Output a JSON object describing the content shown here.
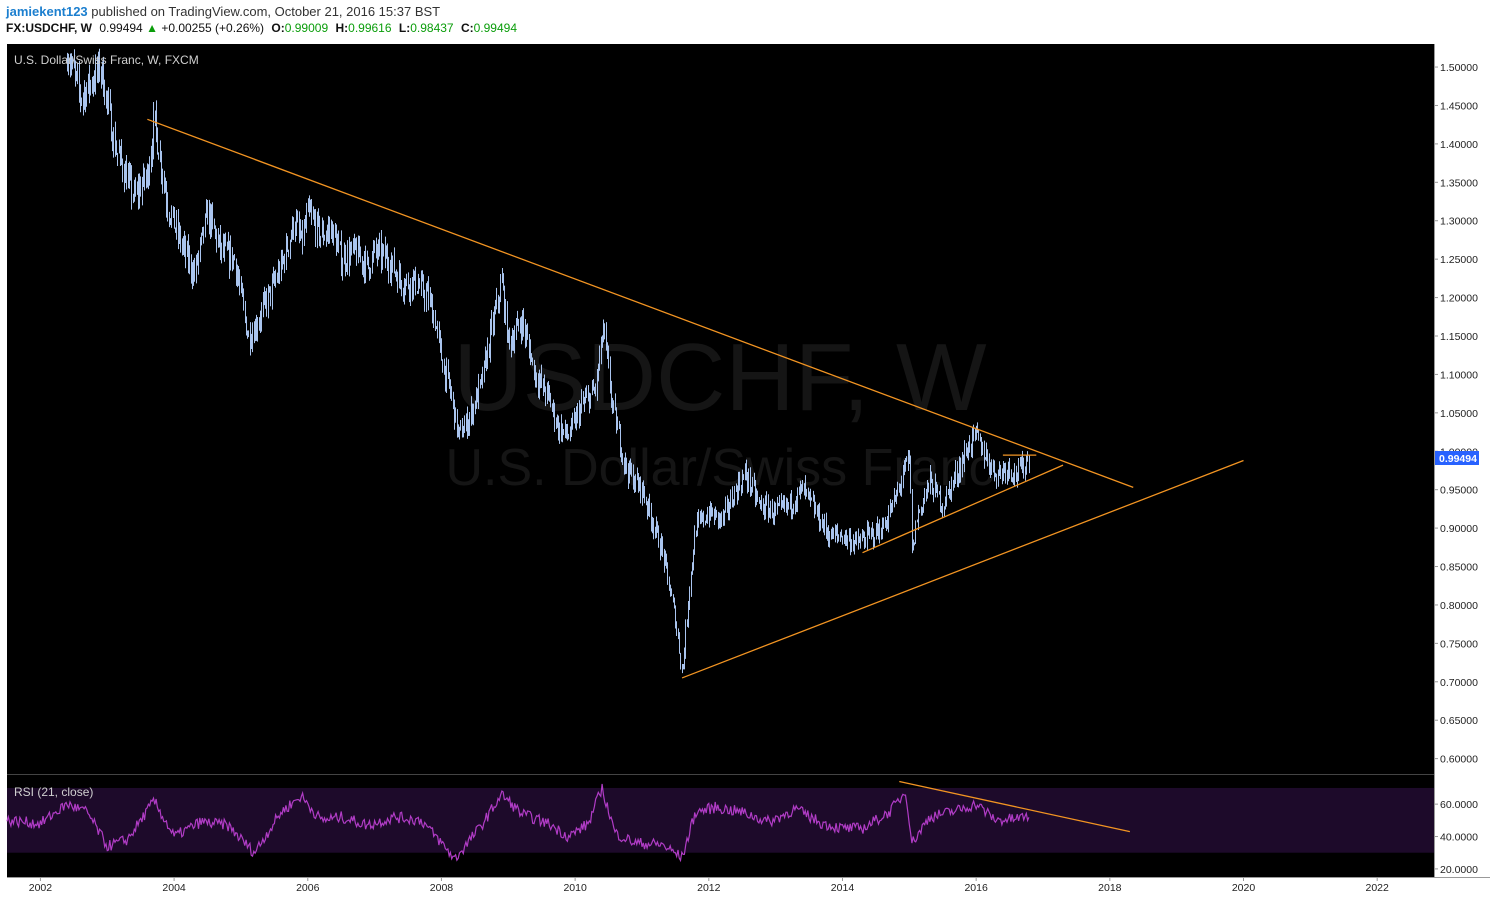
{
  "header": {
    "user": "jamiekent123",
    "published": "published on TradingView.com, October 21, 2016 15:37 BST",
    "symbol": "FX:USDCHF, W",
    "last": "0.99494",
    "arrow": "▲",
    "change": "+0.00255 (+0.26%)",
    "o_label": "O:",
    "o_value": "0.99009",
    "h_label": "H:",
    "h_value": "0.99616",
    "l_label": "L:",
    "l_value": "0.98437",
    "c_label": "C:",
    "c_value": "0.99494"
  },
  "main_pane": {
    "label": "U.S. Dollar/Swiss Franc, W, FXCM",
    "watermark_symbol": "USDCHF, W",
    "watermark_name": "U.S. Dollar/Swiss Franc",
    "price_tag": "0.99494"
  },
  "rsi_pane": {
    "label": "RSI (21, close)"
  },
  "colors": {
    "background": "#000000",
    "candles": "#a9c4ee",
    "trendline": "#f29422",
    "rsi_line": "#b13cc6",
    "rsi_band": "#1d0a2a",
    "price_tag_bg": "#2862ff"
  },
  "chart_data": [
    {
      "type": "line",
      "series_style": "weekly bars",
      "ylim": [
        0.58,
        1.53
      ],
      "y_ticks": [
        "1.50000",
        "1.45000",
        "1.40000",
        "1.35000",
        "1.30000",
        "1.25000",
        "1.20000",
        "1.15000",
        "1.10000",
        "1.05000",
        "1.00000",
        "0.95000",
        "0.90000",
        "0.85000",
        "0.80000",
        "0.75000",
        "0.70000",
        "0.65000",
        "0.60000"
      ],
      "y_tick_values": [
        1.5,
        1.45,
        1.4,
        1.35,
        1.3,
        1.25,
        1.2,
        1.15,
        1.1,
        1.05,
        1.0,
        0.95,
        0.9,
        0.85,
        0.8,
        0.75,
        0.7,
        0.65,
        0.6
      ],
      "x_ticks": [
        "2002",
        "2004",
        "2006",
        "2008",
        "2010",
        "2012",
        "2014",
        "2016",
        "2018",
        "2020",
        "2022"
      ],
      "x_tick_values": [
        2002,
        2004,
        2006,
        2008,
        2010,
        2012,
        2014,
        2016,
        2018,
        2020,
        2022
      ],
      "xlim": [
        2001.5,
        2022.85
      ],
      "price_path": [
        [
          2002.4,
          1.52
        ],
        [
          2002.6,
          1.46
        ],
        [
          2002.9,
          1.5
        ],
        [
          2003.1,
          1.4
        ],
        [
          2003.4,
          1.33
        ],
        [
          2003.6,
          1.36
        ],
        [
          2003.7,
          1.43
        ],
        [
          2003.9,
          1.32
        ],
        [
          2004.1,
          1.27
        ],
        [
          2004.3,
          1.23
        ],
        [
          2004.5,
          1.31
        ],
        [
          2004.7,
          1.26
        ],
        [
          2004.9,
          1.25
        ],
        [
          2005.0,
          1.2
        ],
        [
          2005.1,
          1.15
        ],
        [
          2005.2,
          1.16
        ],
        [
          2005.4,
          1.2
        ],
        [
          2005.6,
          1.24
        ],
        [
          2005.8,
          1.3
        ],
        [
          2005.9,
          1.27
        ],
        [
          2006.0,
          1.31
        ],
        [
          2006.2,
          1.28
        ],
        [
          2006.35,
          1.29
        ],
        [
          2006.5,
          1.25
        ],
        [
          2006.7,
          1.26
        ],
        [
          2006.9,
          1.24
        ],
        [
          2007.0,
          1.26
        ],
        [
          2007.2,
          1.25
        ],
        [
          2007.4,
          1.22
        ],
        [
          2007.6,
          1.22
        ],
        [
          2007.8,
          1.2
        ],
        [
          2007.9,
          1.17
        ],
        [
          2008.0,
          1.12
        ],
        [
          2008.15,
          1.07
        ],
        [
          2008.25,
          1.02
        ],
        [
          2008.4,
          1.04
        ],
        [
          2008.6,
          1.09
        ],
        [
          2008.75,
          1.16
        ],
        [
          2008.9,
          1.22
        ],
        [
          2009.0,
          1.14
        ],
        [
          2009.2,
          1.17
        ],
        [
          2009.4,
          1.1
        ],
        [
          2009.6,
          1.07
        ],
        [
          2009.75,
          1.03
        ],
        [
          2009.9,
          1.02
        ],
        [
          2010.1,
          1.06
        ],
        [
          2010.3,
          1.08
        ],
        [
          2010.42,
          1.16
        ],
        [
          2010.55,
          1.06
        ],
        [
          2010.75,
          0.98
        ],
        [
          2010.9,
          0.96
        ],
        [
          2011.0,
          0.95
        ],
        [
          2011.15,
          0.91
        ],
        [
          2011.3,
          0.87
        ],
        [
          2011.5,
          0.78
        ],
        [
          2011.6,
          0.71
        ],
        [
          2011.7,
          0.82
        ],
        [
          2011.8,
          0.9
        ],
        [
          2012.0,
          0.92
        ],
        [
          2012.2,
          0.91
        ],
        [
          2012.4,
          0.95
        ],
        [
          2012.55,
          0.97
        ],
        [
          2012.75,
          0.93
        ],
        [
          2013.0,
          0.92
        ],
        [
          2013.2,
          0.93
        ],
        [
          2013.4,
          0.95
        ],
        [
          2013.6,
          0.92
        ],
        [
          2013.8,
          0.89
        ],
        [
          2014.0,
          0.89
        ],
        [
          2014.2,
          0.88
        ],
        [
          2014.4,
          0.89
        ],
        [
          2014.6,
          0.9
        ],
        [
          2014.8,
          0.94
        ],
        [
          2014.9,
          0.97
        ],
        [
          2015.0,
          0.99
        ],
        [
          2015.04,
          0.86
        ],
        [
          2015.1,
          0.91
        ],
        [
          2015.3,
          0.96
        ],
        [
          2015.5,
          0.93
        ],
        [
          2015.7,
          0.97
        ],
        [
          2015.9,
          1.01
        ],
        [
          2016.0,
          1.02
        ],
        [
          2016.1,
          1.0
        ],
        [
          2016.3,
          0.97
        ],
        [
          2016.45,
          0.98
        ],
        [
          2016.6,
          0.97
        ],
        [
          2016.7,
          0.98
        ],
        [
          2016.8,
          0.995
        ]
      ],
      "trendlines": [
        {
          "from": [
            2003.6,
            1.432
          ],
          "to": [
            2018.35,
            0.953
          ]
        },
        {
          "from": [
            2011.6,
            0.705
          ],
          "to": [
            2020.0,
            0.988
          ]
        },
        {
          "from": [
            2014.3,
            0.868
          ],
          "to": [
            2017.3,
            0.982
          ]
        },
        {
          "from": [
            2016.4,
            0.995
          ],
          "to": [
            2016.9,
            0.995
          ]
        }
      ]
    },
    {
      "type": "line",
      "name": "RSI (21, close)",
      "ylim": [
        15,
        78
      ],
      "y_ticks": [
        "60.0000",
        "40.0000",
        "20.0000"
      ],
      "y_tick_values": [
        60,
        40,
        20
      ],
      "band": [
        30,
        70
      ],
      "rsi_path": [
        [
          2001.5,
          50
        ],
        [
          2002.0,
          48
        ],
        [
          2002.4,
          60
        ],
        [
          2002.7,
          55
        ],
        [
          2003.0,
          34
        ],
        [
          2003.3,
          38
        ],
        [
          2003.7,
          62
        ],
        [
          2004.0,
          40
        ],
        [
          2004.4,
          49
        ],
        [
          2004.8,
          47
        ],
        [
          2005.2,
          30
        ],
        [
          2005.6,
          55
        ],
        [
          2005.9,
          65
        ],
        [
          2006.2,
          50
        ],
        [
          2006.5,
          52
        ],
        [
          2006.9,
          47
        ],
        [
          2007.3,
          52
        ],
        [
          2007.7,
          50
        ],
        [
          2008.0,
          36
        ],
        [
          2008.2,
          26
        ],
        [
          2008.6,
          47
        ],
        [
          2008.9,
          66
        ],
        [
          2009.2,
          54
        ],
        [
          2009.6,
          48
        ],
        [
          2009.9,
          40
        ],
        [
          2010.2,
          48
        ],
        [
          2010.4,
          70
        ],
        [
          2010.6,
          42
        ],
        [
          2010.9,
          36
        ],
        [
          2011.3,
          35
        ],
        [
          2011.6,
          27
        ],
        [
          2011.8,
          55
        ],
        [
          2012.1,
          58
        ],
        [
          2012.5,
          55
        ],
        [
          2012.9,
          49
        ],
        [
          2013.3,
          57
        ],
        [
          2013.7,
          48
        ],
        [
          2014.0,
          45
        ],
        [
          2014.3,
          45
        ],
        [
          2014.7,
          55
        ],
        [
          2014.95,
          68
        ],
        [
          2015.04,
          36
        ],
        [
          2015.3,
          52
        ],
        [
          2015.7,
          56
        ],
        [
          2016.0,
          60
        ],
        [
          2016.3,
          50
        ],
        [
          2016.6,
          51
        ],
        [
          2016.8,
          53
        ]
      ],
      "trendlines": [
        {
          "from": [
            2014.85,
            74
          ],
          "to": [
            2018.3,
            43
          ]
        }
      ]
    }
  ]
}
